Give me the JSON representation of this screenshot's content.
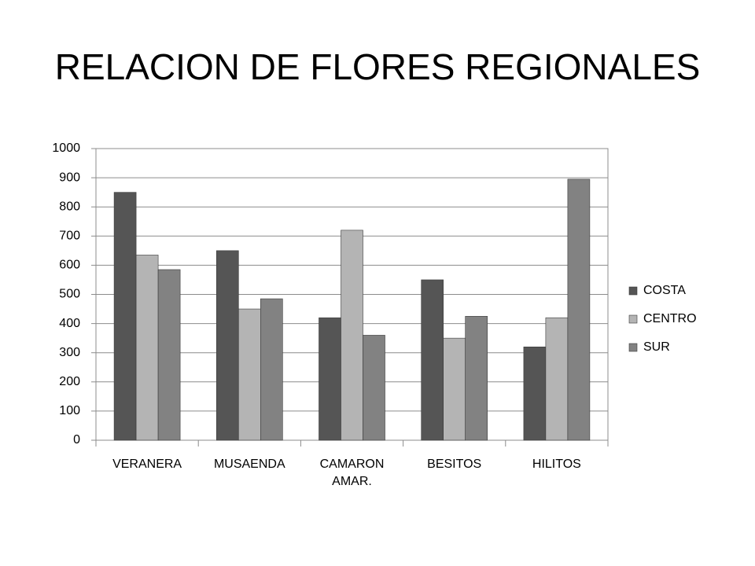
{
  "chart_data": {
    "type": "bar",
    "title": "RELACION DE FLORES REGIONALES",
    "categories": [
      "VERANERA",
      "MUSAENDA",
      "CAMARON AMAR.",
      "BESITOS",
      "HILITOS"
    ],
    "series": [
      {
        "name": "COSTA",
        "color": "#555555",
        "values": [
          850,
          650,
          420,
          550,
          320
        ]
      },
      {
        "name": "CENTRO",
        "color": "#b4b4b4",
        "values": [
          635,
          450,
          720,
          350,
          420
        ]
      },
      {
        "name": "SUR",
        "color": "#828282",
        "values": [
          585,
          485,
          360,
          425,
          895
        ]
      }
    ],
    "ylim": [
      0,
      1000
    ],
    "yticks": [
      0,
      100,
      200,
      300,
      400,
      500,
      600,
      700,
      800,
      900,
      1000
    ],
    "grid": true,
    "legend": "right"
  }
}
